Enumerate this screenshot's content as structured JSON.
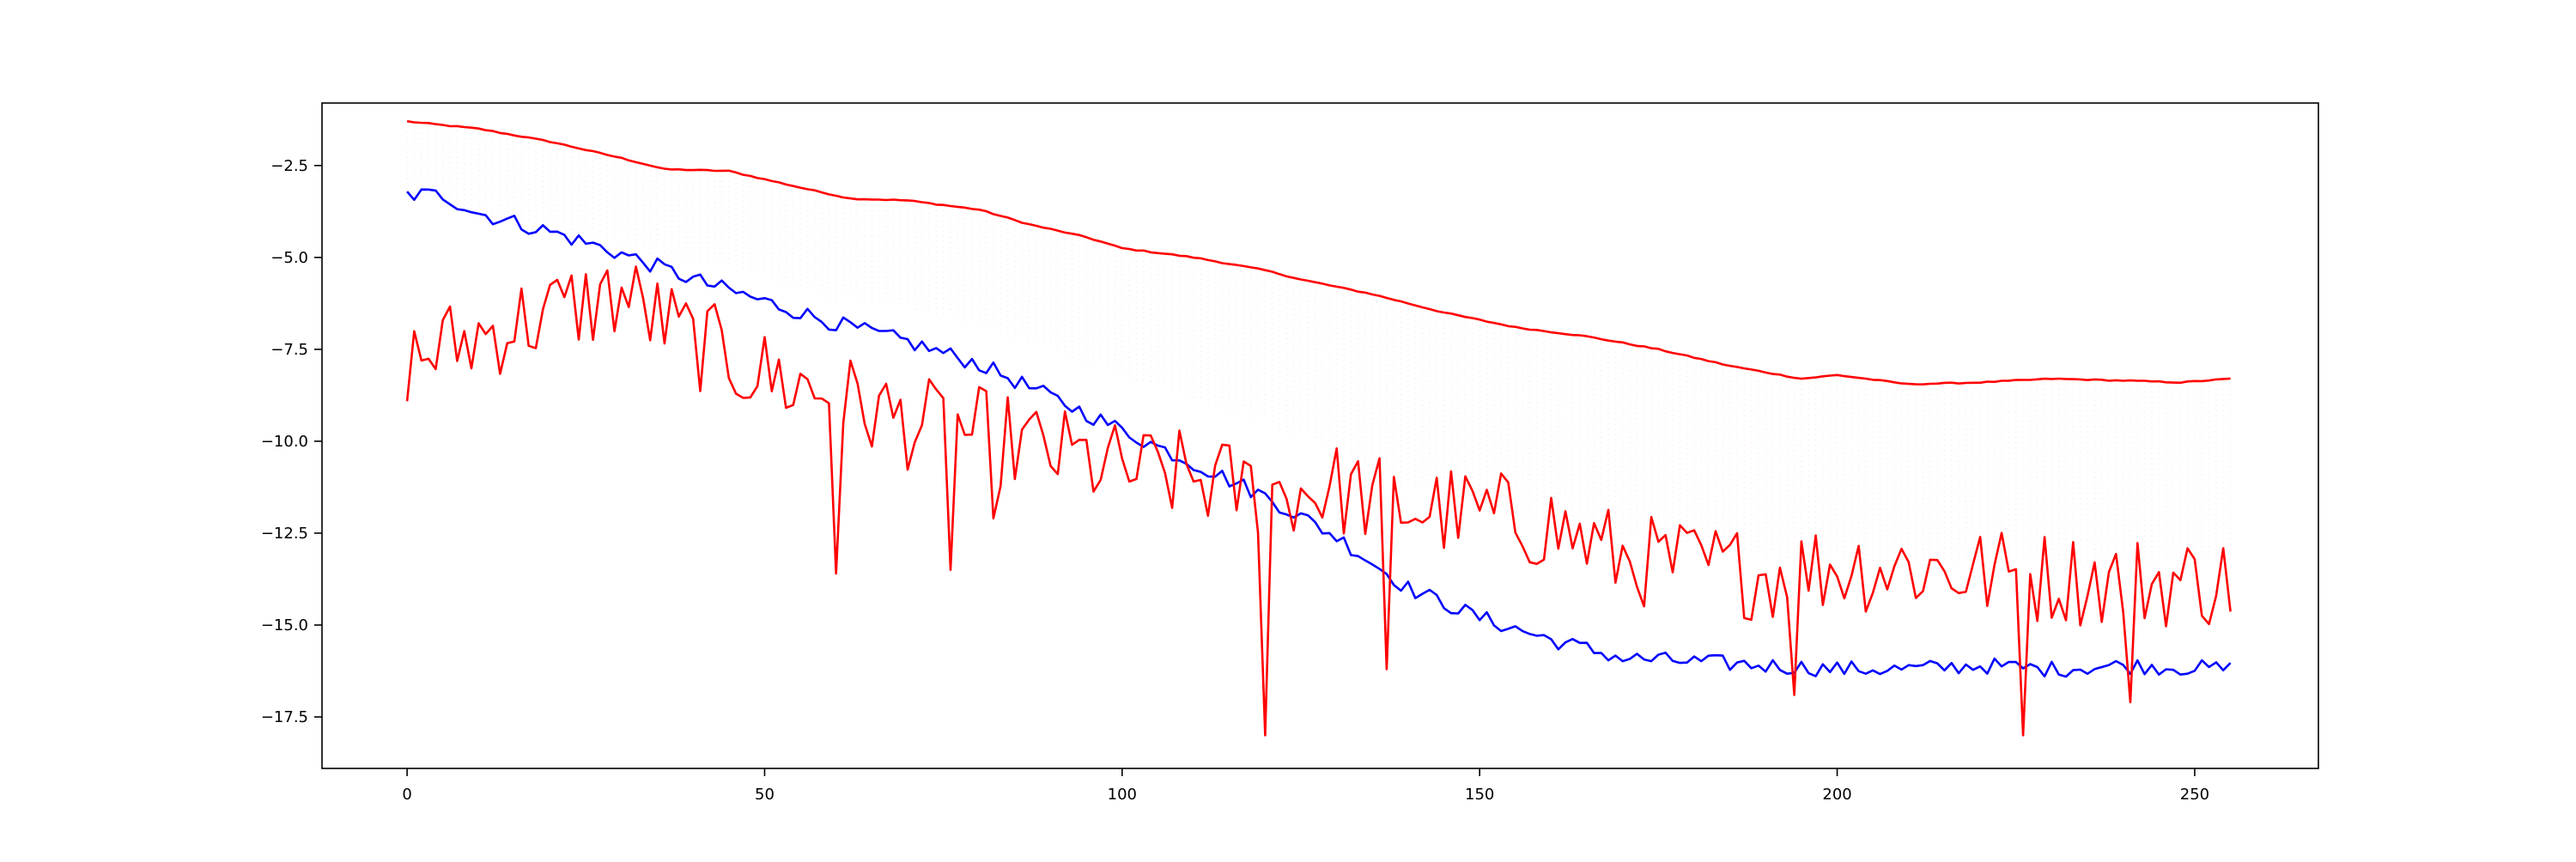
{
  "chart_data": {
    "type": "line",
    "title": "",
    "xlabel": "",
    "ylabel": "",
    "xlim": [
      -11.9,
      267.3
    ],
    "ylim": [
      -18.9,
      -0.8
    ],
    "grid": false,
    "legend": "none",
    "x_ticks": [
      0,
      50,
      100,
      150,
      200,
      250
    ],
    "y_ticks": [
      -2.5,
      -5.0,
      -7.5,
      -10.0,
      -12.5,
      -15.0,
      -17.5
    ],
    "x_tick_labels": [
      "0",
      "50",
      "100",
      "150",
      "200",
      "250"
    ],
    "y_tick_labels": [
      "−2.5",
      "−5.0",
      "−7.5",
      "−10.0",
      "−12.5",
      "−15.0",
      "−17.5"
    ],
    "colors": {
      "upper": "#ff0000",
      "blue": "#0000ff",
      "noisy": "#ff0000",
      "band": "#ffb0b0"
    },
    "n_points": 256,
    "band": "faint dotted band between the upper envelope line and roughly the blue line",
    "series": [
      {
        "style": "upper-envelope",
        "color": "#ff0000",
        "knots": [
          [
            0,
            -1.3
          ],
          [
            10,
            -1.5
          ],
          [
            20,
            -1.85
          ],
          [
            30,
            -2.3
          ],
          [
            36,
            -2.6
          ],
          [
            45,
            -2.65
          ],
          [
            55,
            -3.1
          ],
          [
            62,
            -3.4
          ],
          [
            70,
            -3.45
          ],
          [
            80,
            -3.7
          ],
          [
            87,
            -4.1
          ],
          [
            95,
            -4.45
          ],
          [
            100,
            -4.75
          ],
          [
            110,
            -5.0
          ],
          [
            120,
            -5.35
          ],
          [
            125,
            -5.6
          ],
          [
            135,
            -6.0
          ],
          [
            145,
            -6.5
          ],
          [
            155,
            -6.9
          ],
          [
            165,
            -7.15
          ],
          [
            175,
            -7.5
          ],
          [
            185,
            -7.95
          ],
          [
            195,
            -8.3
          ],
          [
            200,
            -8.2
          ],
          [
            210,
            -8.45
          ],
          [
            220,
            -8.4
          ],
          [
            230,
            -8.3
          ],
          [
            240,
            -8.35
          ],
          [
            248,
            -8.4
          ],
          [
            255,
            -8.3
          ]
        ]
      },
      {
        "style": "blue",
        "color": "#0000ff",
        "knots": [
          [
            0,
            -3.3
          ],
          [
            5,
            -3.3
          ],
          [
            10,
            -3.8
          ],
          [
            20,
            -4.3
          ],
          [
            30,
            -4.9
          ],
          [
            40,
            -5.6
          ],
          [
            50,
            -6.2
          ],
          [
            60,
            -6.8
          ],
          [
            70,
            -7.3
          ],
          [
            80,
            -7.9
          ],
          [
            90,
            -8.8
          ],
          [
            100,
            -9.7
          ],
          [
            110,
            -10.6
          ],
          [
            120,
            -11.5
          ],
          [
            130,
            -12.6
          ],
          [
            140,
            -14.0
          ],
          [
            150,
            -14.8
          ],
          [
            160,
            -15.4
          ],
          [
            170,
            -15.9
          ],
          [
            180,
            -16.0
          ],
          [
            190,
            -16.1
          ],
          [
            200,
            -16.2
          ],
          [
            210,
            -16.2
          ],
          [
            220,
            -16.1
          ],
          [
            230,
            -16.2
          ],
          [
            240,
            -16.1
          ],
          [
            255,
            -16.2
          ]
        ]
      },
      {
        "style": "noisy",
        "color": "#ff0000",
        "knots": [
          [
            0,
            -7.8
          ],
          [
            15,
            -6.8
          ],
          [
            30,
            -6.0
          ],
          [
            40,
            -7.3
          ],
          [
            50,
            -8.2
          ],
          [
            60,
            -8.8
          ],
          [
            70,
            -9.5
          ],
          [
            80,
            -9.8
          ],
          [
            90,
            -10.3
          ],
          [
            100,
            -10.8
          ],
          [
            110,
            -11.0
          ],
          [
            120,
            -11.4
          ],
          [
            130,
            -11.3
          ],
          [
            140,
            -11.8
          ],
          [
            150,
            -12.0
          ],
          [
            160,
            -12.3
          ],
          [
            170,
            -13.2
          ],
          [
            180,
            -13.4
          ],
          [
            190,
            -13.6
          ],
          [
            200,
            -13.4
          ],
          [
            210,
            -13.4
          ],
          [
            220,
            -13.6
          ],
          [
            230,
            -13.7
          ],
          [
            240,
            -13.8
          ],
          [
            255,
            -13.8
          ]
        ],
        "noise_amplitude": 1.3,
        "spikes": [
          [
            60,
            -13.6
          ],
          [
            76,
            -13.5
          ],
          [
            82,
            -12.1
          ],
          [
            120,
            -18.0
          ],
          [
            137,
            -16.2
          ],
          [
            194,
            -16.9
          ],
          [
            226,
            -18.0
          ],
          [
            241,
            -17.1
          ]
        ]
      }
    ]
  }
}
